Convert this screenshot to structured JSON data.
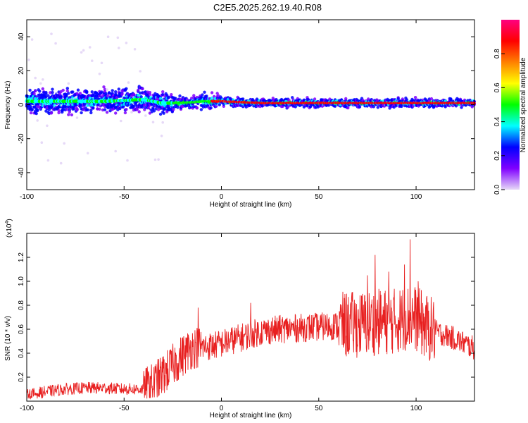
{
  "figure": {
    "title": "C2E5.2025.262.19.40.R08"
  },
  "chart_data": [
    {
      "type": "scatter",
      "panel": "spectrogram",
      "xlabel": "Height of straight line (km)",
      "ylabel": "Frequency (Hz)",
      "xlim": [
        -100,
        130
      ],
      "ylim": [
        -50,
        50
      ],
      "xticks": [
        -100,
        -50,
        0,
        50,
        100
      ],
      "yticks": [
        -40,
        -20,
        0,
        20,
        40
      ],
      "grid": false,
      "colorbar": {
        "label": "Normalized spectral amplitude",
        "range": [
          0,
          1
        ],
        "ticks": [
          "0.0",
          "0.2",
          "0.4",
          "0.6",
          "0.8"
        ],
        "colormap": "rainbow",
        "colors": [
          "#e6d9f7",
          "#8000ff",
          "#0000ff",
          "#00ffff",
          "#00ff00",
          "#ffff00",
          "#ff8000",
          "#ff0000",
          "#ff0080"
        ]
      },
      "ridge": {
        "x": [
          -100,
          -80,
          -60,
          -40,
          -30,
          -20,
          -10,
          0,
          20,
          40,
          60,
          80,
          100,
          120,
          130
        ],
        "y": [
          2,
          2,
          2,
          3,
          1,
          1,
          2,
          2,
          1,
          1,
          1,
          1,
          1,
          1,
          1
        ]
      }
    },
    {
      "type": "line",
      "panel": "snr",
      "xlabel": "Height of straight line (km)",
      "ylabel": "SNR (10 * v/v)",
      "y_multiplier": "(x10",
      "y_multiplier_exp": "4",
      "xlim": [
        -100,
        130
      ],
      "ylim": [
        0,
        1.4
      ],
      "xticks": [
        -100,
        -50,
        0,
        50,
        100
      ],
      "yticks": [
        0.2,
        0.4,
        0.6,
        0.8,
        1.0,
        1.2
      ],
      "ytick_labels": [
        "0.2",
        "0.4",
        "0.6",
        "0.8",
        "1.0",
        "1.2"
      ],
      "color": "#e82020",
      "grid": false,
      "x": [
        -100,
        -90,
        -80,
        -70,
        -60,
        -50,
        -40,
        -35,
        -30,
        -25,
        -20,
        -15,
        -10,
        -5,
        0,
        10,
        20,
        30,
        40,
        50,
        60,
        70,
        80,
        90,
        95,
        100,
        105,
        110,
        120,
        130
      ],
      "y": [
        0.05,
        0.08,
        0.1,
        0.11,
        0.11,
        0.1,
        0.1,
        0.14,
        0.22,
        0.3,
        0.38,
        0.45,
        0.45,
        0.46,
        0.48,
        0.53,
        0.58,
        0.6,
        0.61,
        0.62,
        0.63,
        0.64,
        0.66,
        0.67,
        0.7,
        0.69,
        0.62,
        0.58,
        0.52,
        0.44
      ],
      "peaks": {
        "x": [
          -12,
          15,
          75,
          79,
          86,
          94,
          97,
          101
        ],
        "y": [
          0.78,
          0.82,
          1.05,
          1.22,
          1.08,
          1.14,
          1.35,
          1.0
        ]
      }
    }
  ]
}
